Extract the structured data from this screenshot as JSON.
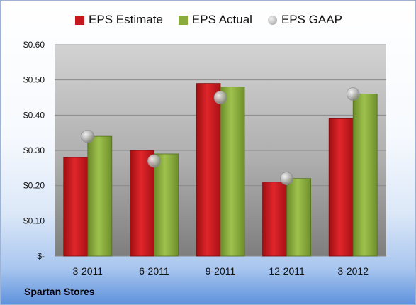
{
  "chart_data": {
    "type": "bar",
    "categories": [
      "3-2011",
      "6-2011",
      "9-2011",
      "12-2011",
      "3-2012"
    ],
    "series": [
      {
        "name": "EPS Estimate",
        "values": [
          0.28,
          0.3,
          0.49,
          0.21,
          0.39
        ],
        "color": "#c8171c",
        "kind": "bar"
      },
      {
        "name": "EPS Actual",
        "values": [
          0.34,
          0.29,
          0.48,
          0.22,
          0.46
        ],
        "color": "#8aac3c",
        "kind": "bar"
      },
      {
        "name": "EPS GAAP",
        "values": [
          0.34,
          0.27,
          0.45,
          0.22,
          0.46
        ],
        "color": "#b8b8b8",
        "kind": "marker"
      }
    ],
    "ylim": [
      0,
      0.6
    ],
    "yticks": [
      0,
      0.1,
      0.2,
      0.3,
      0.4,
      0.5,
      0.6
    ],
    "ytick_labels": [
      "$-",
      "$0.10",
      "$0.20",
      "$0.30",
      "$0.40",
      "$0.50",
      "$0.60"
    ],
    "legend_position": "top",
    "grid": true
  },
  "footer": {
    "company": "Spartan Stores"
  }
}
